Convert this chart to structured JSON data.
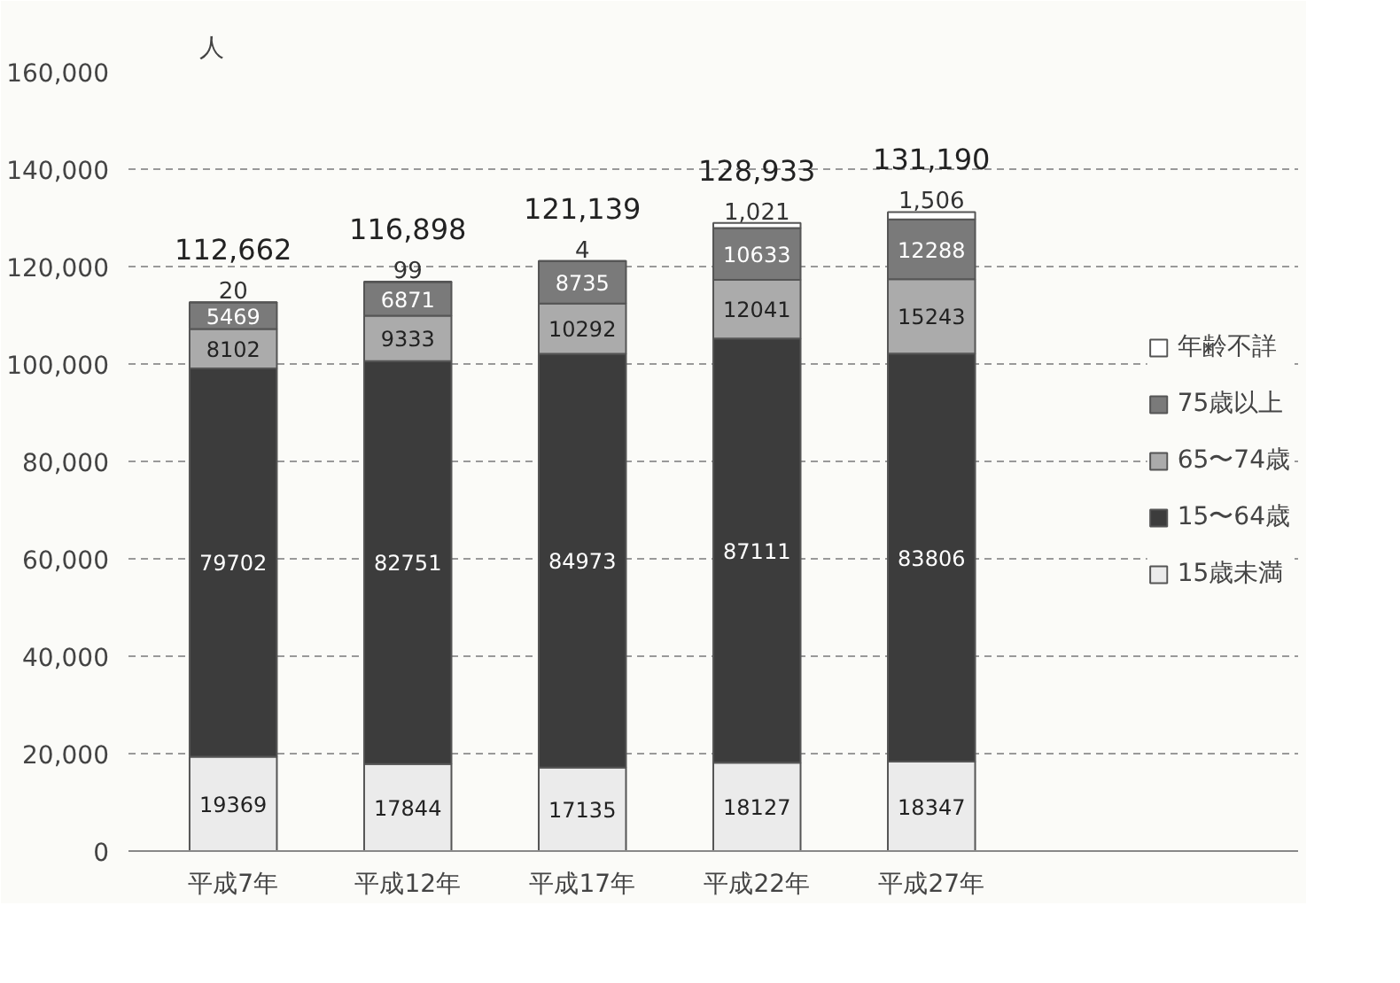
{
  "chart_data": {
    "type": "bar",
    "stacked": true,
    "ylabel": "人",
    "categories": [
      "平成7年",
      "平成12年",
      "平成17年",
      "平成22年",
      "平成27年"
    ],
    "series": [
      {
        "name": "15歳未満",
        "color": "#ebebeb",
        "values": [
          19369,
          17844,
          17135,
          18127,
          18347
        ],
        "value_labels": [
          "19369",
          "17844",
          "17135",
          "18127",
          "18347"
        ]
      },
      {
        "name": "15〜64歳",
        "color": "#3c3c3c",
        "values": [
          79702,
          82751,
          84973,
          87111,
          83806
        ],
        "value_labels": [
          "79702",
          "82751",
          "84973",
          "87111",
          "83806"
        ]
      },
      {
        "name": "65〜74歳",
        "color": "#ababab",
        "values": [
          8102,
          9333,
          10292,
          12041,
          15243
        ],
        "value_labels": [
          "8102",
          "9333",
          "10292",
          "12041",
          "15243"
        ]
      },
      {
        "name": "75歳以上",
        "color": "#7a7a7a",
        "values": [
          5469,
          6871,
          8735,
          10633,
          12288
        ],
        "value_labels": [
          "5469",
          "6871",
          "8735",
          "10633",
          "12288"
        ]
      },
      {
        "name": "年齢不詳",
        "color": "#ffffff",
        "values": [
          20,
          99,
          4,
          1021,
          1506
        ],
        "value_labels": [
          "20",
          "99",
          "4",
          "1,021",
          "1,506"
        ]
      }
    ],
    "totals": [
      "112,662",
      "116,898",
      "121,139",
      "128,933",
      "131,190"
    ],
    "ylim": [
      0,
      160000
    ],
    "yticks": [
      0,
      {
        "value": 20000,
        "label": "20,000"
      },
      {
        "value": 40000,
        "label": "40,000"
      },
      {
        "value": 60000,
        "label": "60,000"
      },
      {
        "value": 80000,
        "label": "80,000"
      },
      {
        "value": 100000,
        "label": "100,000"
      },
      {
        "value": 120000,
        "label": "120,000"
      },
      {
        "value": 140000,
        "label": "140,000"
      },
      {
        "value": 160000,
        "label": "160,000"
      }
    ],
    "grid": "y",
    "legend": "right"
  }
}
